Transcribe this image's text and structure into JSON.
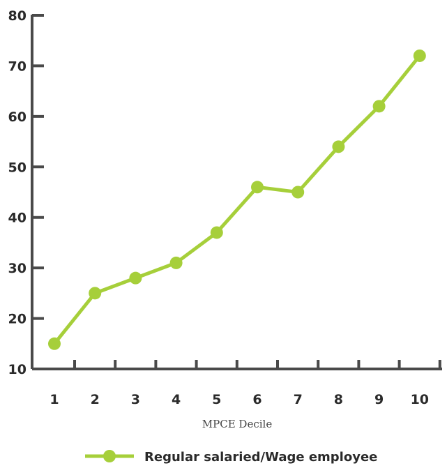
{
  "chart_data": {
    "type": "line",
    "title": "",
    "xlabel": "MPCE Decile",
    "ylabel": "",
    "x": [
      1,
      2,
      3,
      4,
      5,
      6,
      7,
      8,
      9,
      10
    ],
    "ylim": [
      10,
      80
    ],
    "yticks": [
      10,
      20,
      30,
      40,
      50,
      60,
      70,
      80
    ],
    "grid": false,
    "legend_position": "bottom",
    "series": [
      {
        "name": "Regular salaried/Wage employee",
        "color": "#a6cf3a",
        "values": [
          15,
          25,
          28,
          31,
          37,
          46,
          45,
          54,
          62,
          72
        ]
      }
    ],
    "axis_color": "#4a4a4a"
  }
}
